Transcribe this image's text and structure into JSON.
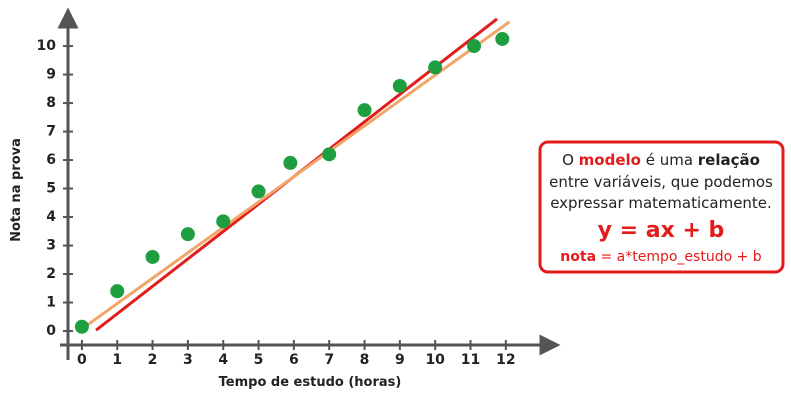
{
  "chart_data": {
    "type": "scatter",
    "x_label": "Tempo de estudo (horas)",
    "y_label": "Nota na prova",
    "x": [
      0,
      1,
      2,
      3,
      4,
      5,
      5.9,
      7,
      8,
      9,
      10,
      11.1,
      11.9
    ],
    "values": [
      0.15,
      1.4,
      2.6,
      3.4,
      3.85,
      4.9,
      5.9,
      6.2,
      7.75,
      8.6,
      9.25,
      10,
      10.25
    ],
    "color": "#1e9e3e",
    "lines": [
      {
        "x": [
          0.4,
          11.75
        ],
        "values": [
          0.03,
          10.95
        ],
        "color": "#e31b1b"
      },
      {
        "x": [
          -0.05,
          12.1
        ],
        "values": [
          0.03,
          10.85
        ],
        "color": "#f2a56a"
      }
    ],
    "xlim": [
      -0.62,
      13.25
    ],
    "ylim": [
      -0.49,
      11.09
    ],
    "xticks": [
      0,
      1,
      2,
      3,
      4,
      5,
      6,
      7,
      8,
      9,
      10,
      11,
      12
    ],
    "yticks": [
      0,
      1,
      2,
      3,
      4,
      5,
      6,
      7,
      8,
      9,
      10
    ]
  },
  "annotation": {
    "line1": [
      "O ",
      "modelo",
      " é uma ",
      "relação"
    ],
    "line2": "entre variáveis, que podemos",
    "line3": "expressar matematicamente.",
    "formula": "y = ax + b",
    "line5": [
      "nota",
      " = a*tempo_estudo + b"
    ]
  }
}
